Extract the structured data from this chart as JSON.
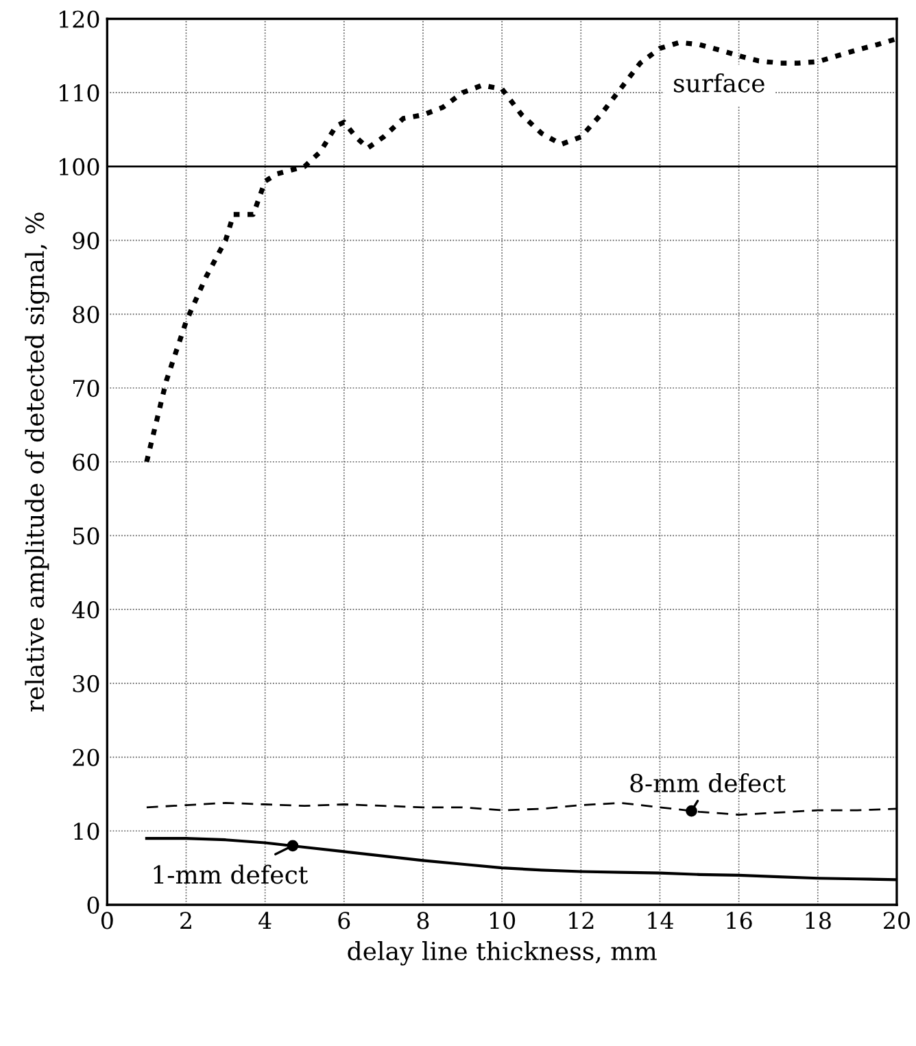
{
  "chart_data": {
    "type": "line",
    "xlabel": "delay line thickness, mm",
    "ylabel": "relative amplitude of detected signal, %",
    "xlim": [
      0,
      20
    ],
    "ylim": [
      0,
      120
    ],
    "xticks": [
      0,
      2,
      4,
      6,
      8,
      10,
      12,
      14,
      16,
      18,
      20
    ],
    "yticks": [
      0,
      10,
      20,
      30,
      40,
      50,
      60,
      70,
      80,
      90,
      100,
      110,
      120
    ],
    "grid": true,
    "legend": false,
    "series": [
      {
        "color": "#000000",
        "line_style": "dotted",
        "x": [
          1,
          1.5,
          2,
          2.5,
          3,
          3.2,
          3.7,
          4,
          4.3,
          5,
          5.4,
          5.8,
          6,
          6.3,
          6.6,
          7,
          7.5,
          8,
          8.5,
          9,
          9.5,
          10,
          10.5,
          11,
          11.5,
          12,
          12.5,
          13,
          13.5,
          14,
          14.5,
          15,
          15.5,
          16,
          16.5,
          17,
          17.5,
          18,
          18.5,
          19,
          19.5,
          20
        ],
        "values": [
          60,
          71,
          79,
          85,
          90,
          93.5,
          93.5,
          98,
          99,
          100,
          102,
          105.5,
          106,
          104,
          102.5,
          104,
          106.5,
          107,
          108,
          110,
          111,
          110.5,
          107,
          104.5,
          103,
          104,
          107,
          110.5,
          114,
          116,
          116.8,
          116.5,
          115.8,
          115,
          114.3,
          114,
          114,
          114.2,
          115,
          115.8,
          116.5,
          117.3
        ]
      },
      {
        "color": "#000000",
        "line_style": "dashed",
        "x": [
          1,
          2,
          3,
          4,
          5,
          6,
          7,
          8,
          9,
          10,
          11,
          12,
          13,
          14,
          15,
          16,
          17,
          18,
          19,
          20
        ],
        "values": [
          13.2,
          13.5,
          13.8,
          13.6,
          13.4,
          13.6,
          13.4,
          13.2,
          13.2,
          12.8,
          13.0,
          13.5,
          13.8,
          13.2,
          12.6,
          12.2,
          12.5,
          12.8,
          12.8,
          13.0
        ]
      },
      {
        "color": "#000000",
        "line_style": "solid",
        "x": [
          1,
          2,
          3,
          4,
          5,
          6,
          7,
          8,
          9,
          10,
          11,
          12,
          13,
          14,
          15,
          16,
          17,
          18,
          19,
          20
        ],
        "values": [
          9.0,
          9.0,
          8.8,
          8.4,
          7.8,
          7.2,
          6.6,
          6.0,
          5.5,
          5.0,
          4.7,
          4.5,
          4.4,
          4.3,
          4.1,
          4.0,
          3.8,
          3.6,
          3.5,
          3.4
        ]
      }
    ],
    "ref_lines": [
      {
        "axis": "y",
        "value": 100,
        "color": "#000000",
        "line_style": "solid"
      }
    ],
    "annotations": [
      "surface",
      {
        "text": "8-mm defect",
        "x": 14.8,
        "y": 12.7
      },
      {
        "text": "1-mm defect",
        "x": 4.7,
        "y": 8
      }
    ]
  }
}
